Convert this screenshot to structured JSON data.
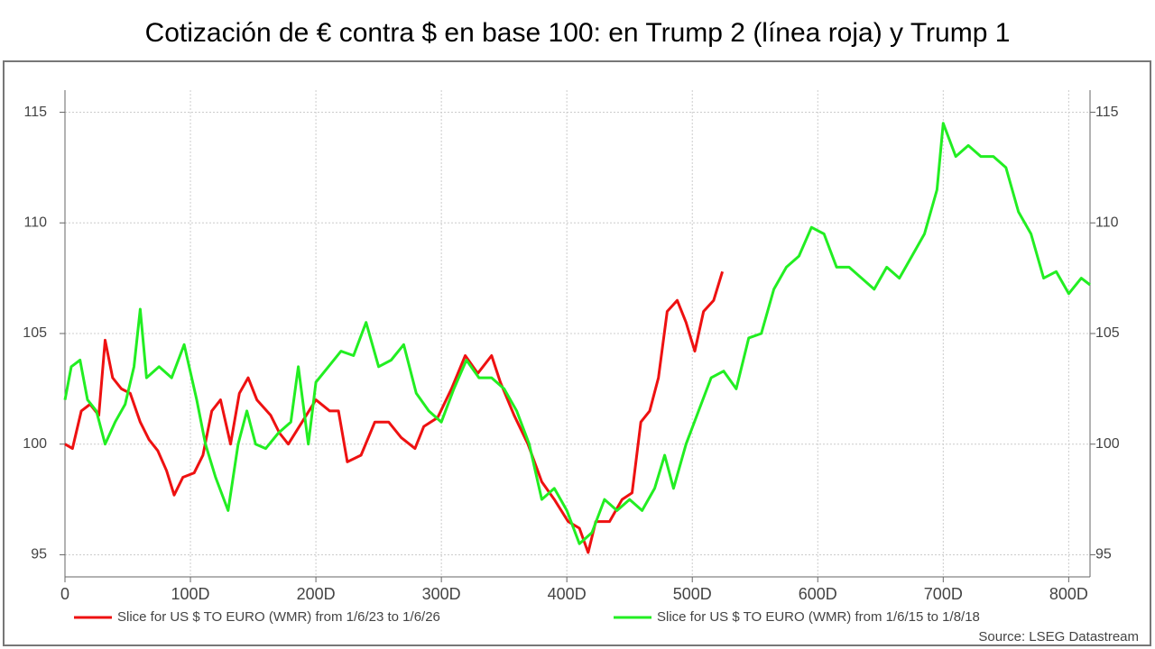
{
  "chart_data": {
    "type": "line",
    "title": "Cotización de € contra $ en base 100: en Trump 2 (línea roja) y Trump 1",
    "source": "Source: LSEG Datastream",
    "xlim": [
      0,
      817
    ],
    "xticks": [
      0,
      {
        "value": 100,
        "label": "100D"
      },
      {
        "value": 200,
        "label": "200D"
      },
      {
        "value": 300,
        "label": "300D"
      },
      {
        "value": 400,
        "label": "400D"
      },
      {
        "value": 500,
        "label": "500D"
      },
      {
        "value": 600,
        "label": "600D"
      },
      {
        "value": 700,
        "label": "700D"
      },
      {
        "value": 800,
        "label": "800D"
      }
    ],
    "ylim": [
      94,
      116
    ],
    "yticks": [
      95,
      100,
      105,
      110,
      115
    ],
    "y2lim": [
      94,
      116
    ],
    "y2ticks": [
      95,
      100,
      105,
      110,
      115
    ],
    "grid": true,
    "legend": "bottom",
    "series": [
      {
        "name": "Slice for US $ TO EURO (WMR) from 1/6/23 to 1/6/26",
        "color": "#ee1111",
        "x": [
          0,
          6,
          13,
          20,
          27,
          32,
          38,
          45,
          52,
          60,
          67,
          74,
          81,
          87,
          94,
          103,
          110,
          117,
          124,
          132,
          139,
          146,
          153,
          164,
          171,
          178,
          189,
          200,
          211,
          218,
          225,
          236,
          247,
          258,
          268,
          279,
          286,
          297,
          308,
          319,
          329,
          340,
          347,
          358,
          369,
          380,
          390,
          401,
          410,
          417,
          423,
          434,
          444,
          452,
          459,
          466,
          473,
          480,
          488,
          495,
          502,
          509,
          517,
          524
        ],
        "values": [
          100,
          99.8,
          101.5,
          101.8,
          101.3,
          104.7,
          103,
          102.5,
          102.3,
          101,
          100.2,
          99.7,
          98.8,
          97.7,
          98.5,
          98.7,
          99.5,
          101.5,
          102,
          100,
          102.3,
          103,
          102,
          101.3,
          100.5,
          100,
          101,
          102,
          101.5,
          101.5,
          99.2,
          99.5,
          101,
          101,
          100.3,
          99.8,
          100.8,
          101.2,
          102.5,
          104,
          103.2,
          104,
          102.8,
          101.3,
          100,
          98.3,
          97.5,
          96.5,
          96.2,
          95.1,
          96.5,
          96.5,
          97.5,
          97.8,
          101,
          101.5,
          103,
          106,
          106.5,
          105.5,
          104.2,
          106,
          106.5,
          107.8
        ]
      },
      {
        "name": "Slice for US $ TO EURO (WMR) from 1/6/15 to 1/8/18",
        "color": "#22ee22",
        "x": [
          0,
          5,
          12,
          18,
          25,
          32,
          40,
          48,
          55,
          60,
          65,
          75,
          85,
          95,
          105,
          112,
          120,
          130,
          138,
          145,
          152,
          160,
          170,
          180,
          186,
          194,
          200,
          210,
          220,
          230,
          240,
          250,
          260,
          270,
          280,
          290,
          300,
          310,
          320,
          330,
          340,
          350,
          360,
          370,
          380,
          390,
          400,
          410,
          420,
          430,
          440,
          450,
          460,
          470,
          478,
          485,
          495,
          505,
          515,
          525,
          535,
          545,
          555,
          565,
          575,
          585,
          595,
          605,
          615,
          625,
          635,
          645,
          655,
          665,
          675,
          685,
          695,
          700,
          710,
          720,
          730,
          740,
          750,
          760,
          770,
          780,
          790,
          800,
          810,
          817
        ],
        "values": [
          102,
          103.5,
          103.8,
          102,
          101.5,
          100,
          101,
          101.8,
          103.5,
          106.1,
          103,
          103.5,
          103,
          104.5,
          102,
          100,
          98.5,
          97,
          100,
          101.5,
          100,
          99.8,
          100.5,
          101,
          103.5,
          100,
          102.8,
          103.5,
          104.2,
          104,
          105.5,
          103.5,
          103.8,
          104.5,
          102.3,
          101.5,
          101,
          102.5,
          103.8,
          103,
          103,
          102.5,
          101.5,
          100,
          97.5,
          98,
          97,
          95.5,
          96,
          97.5,
          97,
          97.5,
          97,
          98,
          99.5,
          98,
          100,
          101.5,
          103,
          103.3,
          102.5,
          104.8,
          105,
          107,
          108,
          108.5,
          109.8,
          109.5,
          108,
          108,
          107.5,
          107,
          108,
          107.5,
          108.5,
          109.5,
          111.5,
          114.5,
          113,
          113.5,
          113,
          113,
          112.5,
          110.5,
          109.5,
          107.5,
          107.8,
          106.8,
          107.5,
          107.2
        ]
      }
    ]
  }
}
